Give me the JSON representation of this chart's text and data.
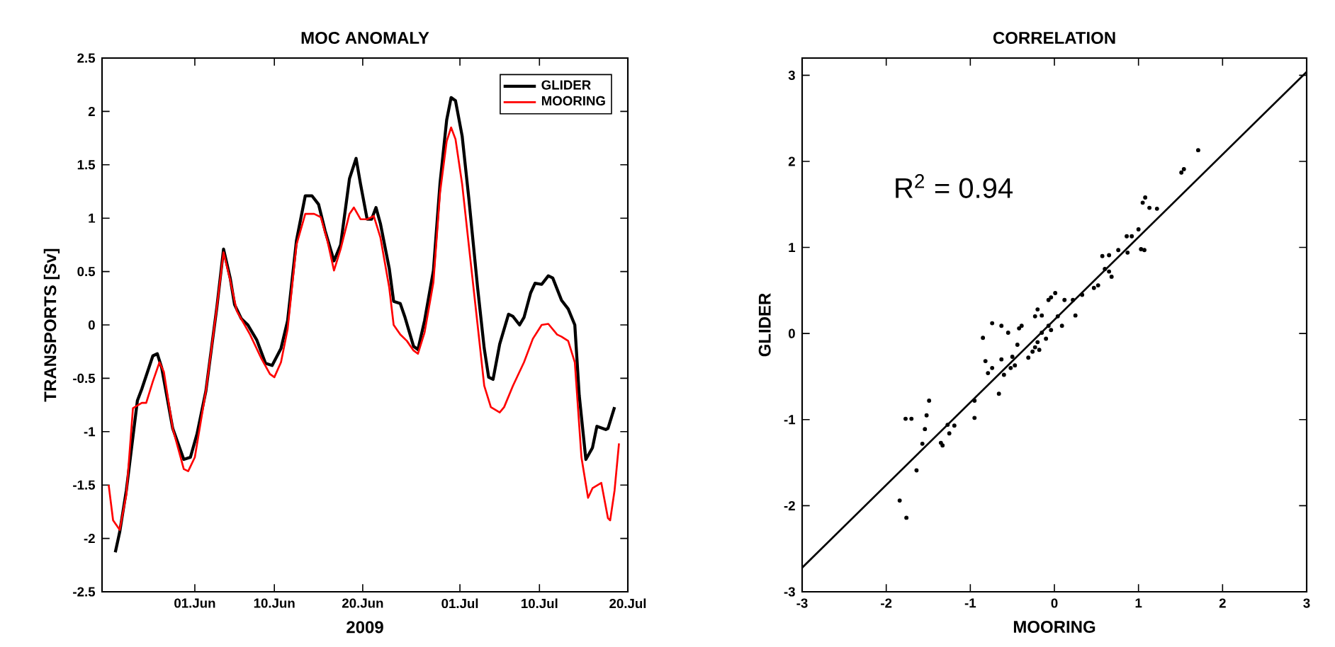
{
  "chart_data": [
    {
      "type": "line",
      "title": "MOC ANOMALY",
      "xlabel": "2009",
      "ylabel": "TRANSPORTS [Sv]",
      "xlim": [
        "2009-05-21T12:00",
        "2009-07-20T00:00"
      ],
      "ylim": [
        -2.5,
        2.5
      ],
      "xticks": [
        {
          "value": "2009-06-01",
          "label": "01.Jun"
        },
        {
          "value": "2009-06-10",
          "label": "10.Jun"
        },
        {
          "value": "2009-06-20",
          "label": "20.Jun"
        },
        {
          "value": "2009-07-01",
          "label": "01.Jul"
        },
        {
          "value": "2009-07-10",
          "label": "10.Jul"
        },
        {
          "value": "2009-07-20",
          "label": "20.Jul"
        }
      ],
      "yticks": [
        -2.5,
        -2,
        -1.5,
        -1,
        -0.5,
        0,
        0.5,
        1,
        1.5,
        2,
        2.5
      ],
      "legend": "top right",
      "line_style": "solid",
      "series": [
        {
          "name": "GLIDER",
          "color": "#000000",
          "x": [
            "2009-05-23T00:00",
            "2009-05-23T12:00",
            "2009-05-24T06:00",
            "2009-05-25T12:00",
            "2009-05-26T00:00",
            "2009-05-27T06:00",
            "2009-05-27T18:00",
            "2009-05-28T06:00",
            "2009-05-29T12:00",
            "2009-05-30T18:00",
            "2009-05-31T12:00",
            "2009-06-01T06:00",
            "2009-06-02T06:00",
            "2009-06-03T12:00",
            "2009-06-04T06:00",
            "2009-06-05T00:00",
            "2009-06-05T12:00",
            "2009-06-06T06:00",
            "2009-06-07T00:00",
            "2009-06-08T00:00",
            "2009-06-09T00:00",
            "2009-06-09T18:00",
            "2009-06-10T18:00",
            "2009-06-11T12:00",
            "2009-06-12T12:00",
            "2009-06-13T12:00",
            "2009-06-14T06:00",
            "2009-06-15T00:00",
            "2009-06-15T18:00",
            "2009-06-16T18:00",
            "2009-06-17T12:00",
            "2009-06-18T12:00",
            "2009-06-19T06:00",
            "2009-06-19T18:00",
            "2009-06-20T12:00",
            "2009-06-21T00:00",
            "2009-06-21T12:00",
            "2009-06-22T00:00",
            "2009-06-23T00:00",
            "2009-06-23T12:00",
            "2009-06-24T06:00",
            "2009-06-24T18:00",
            "2009-06-25T18:00",
            "2009-06-26T06:00",
            "2009-06-27T00:00",
            "2009-06-28T00:00",
            "2009-06-28T18:00",
            "2009-06-29T12:00",
            "2009-06-30T00:00",
            "2009-06-30T12:00",
            "2009-07-01T06:00",
            "2009-07-02T00:00",
            "2009-07-03T00:00",
            "2009-07-03T18:00",
            "2009-07-04T06:00",
            "2009-07-04T18:00",
            "2009-07-05T12:00",
            "2009-07-06T12:00",
            "2009-07-07T00:00",
            "2009-07-07T18:00",
            "2009-07-08T06:00",
            "2009-07-09T00:00",
            "2009-07-09T12:00",
            "2009-07-10T06:00",
            "2009-07-11T00:00",
            "2009-07-11T12:00",
            "2009-07-12T12:00",
            "2009-07-13T06:00",
            "2009-07-14T00:00",
            "2009-07-14T12:00",
            "2009-07-15T06:00",
            "2009-07-16T00:00",
            "2009-07-16T12:00",
            "2009-07-17T12:00",
            "2009-07-17T18:00",
            "2009-07-18T12:00"
          ],
          "values": [
            -2.13,
            -1.94,
            -1.55,
            -0.71,
            -0.6,
            -0.29,
            -0.27,
            -0.4,
            -0.97,
            -1.26,
            -1.24,
            -1.02,
            -0.62,
            0.17,
            0.71,
            0.44,
            0.19,
            0.06,
            0.0,
            -0.14,
            -0.36,
            -0.38,
            -0.22,
            0.04,
            0.79,
            1.21,
            1.21,
            1.13,
            0.88,
            0.6,
            0.75,
            1.37,
            1.56,
            1.32,
            0.99,
            0.99,
            1.1,
            0.95,
            0.53,
            0.22,
            0.2,
            0.08,
            -0.2,
            -0.23,
            0.04,
            0.51,
            1.33,
            1.92,
            2.13,
            2.1,
            1.77,
            1.19,
            0.35,
            -0.22,
            -0.49,
            -0.51,
            -0.18,
            0.1,
            0.08,
            0.0,
            0.07,
            0.3,
            0.39,
            0.38,
            0.46,
            0.44,
            0.23,
            0.15,
            0.0,
            -0.66,
            -1.26,
            -1.15,
            -0.95,
            -0.98,
            -0.97,
            -0.77
          ]
        },
        {
          "name": "MOORING",
          "color": "#ff0000",
          "x": [
            "2009-05-22T06:00",
            "2009-05-22T18:00",
            "2009-05-23T12:00",
            "2009-05-24T06:00",
            "2009-05-25T00:00",
            "2009-05-26T00:00",
            "2009-05-26T12:00",
            "2009-05-27T06:00",
            "2009-05-28T00:00",
            "2009-05-28T12:00",
            "2009-05-29T12:00",
            "2009-05-30T18:00",
            "2009-05-31T06:00",
            "2009-06-01T00:00",
            "2009-06-02T06:00",
            "2009-06-03T12:00",
            "2009-06-04T06:00",
            "2009-06-05T00:00",
            "2009-06-05T18:00",
            "2009-06-06T12:00",
            "2009-06-07T06:00",
            "2009-06-08T12:00",
            "2009-06-09T12:00",
            "2009-06-10T00:00",
            "2009-06-10T18:00",
            "2009-06-11T12:00",
            "2009-06-12T12:00",
            "2009-06-13T12:00",
            "2009-06-14T12:00",
            "2009-06-15T06:00",
            "2009-06-16T00:00",
            "2009-06-16T18:00",
            "2009-06-17T12:00",
            "2009-06-18T12:00",
            "2009-06-19T00:00",
            "2009-06-19T18:00",
            "2009-06-20T12:00",
            "2009-06-21T06:00",
            "2009-06-22T00:00",
            "2009-06-23T00:00",
            "2009-06-23T12:00",
            "2009-06-24T06:00",
            "2009-06-25T00:00",
            "2009-06-25T18:00",
            "2009-06-26T06:00",
            "2009-06-27T00:00",
            "2009-06-28T00:00",
            "2009-06-28T18:00",
            "2009-06-29T12:00",
            "2009-06-30T00:00",
            "2009-06-30T12:00",
            "2009-07-01T06:00",
            "2009-07-02T00:00",
            "2009-07-03T00:00",
            "2009-07-03T18:00",
            "2009-07-04T12:00",
            "2009-07-05T12:00",
            "2009-07-06T00:00",
            "2009-07-07T00:00",
            "2009-07-08T06:00",
            "2009-07-09T06:00",
            "2009-07-10T06:00",
            "2009-07-11T00:00",
            "2009-07-12T00:00",
            "2009-07-12T12:00",
            "2009-07-13T06:00",
            "2009-07-14T00:00",
            "2009-07-14T18:00",
            "2009-07-15T12:00",
            "2009-07-16T00:00",
            "2009-07-17T00:00",
            "2009-07-17T18:00",
            "2009-07-18T00:00",
            "2009-07-18T12:00",
            "2009-07-19T00:00"
          ],
          "values": [
            -1.5,
            -1.83,
            -1.92,
            -1.59,
            -0.78,
            -0.73,
            -0.73,
            -0.53,
            -0.35,
            -0.44,
            -0.97,
            -1.35,
            -1.37,
            -1.24,
            -0.62,
            0.17,
            0.68,
            0.42,
            0.13,
            0.02,
            -0.09,
            -0.31,
            -0.46,
            -0.49,
            -0.35,
            -0.04,
            0.75,
            1.04,
            1.04,
            1.01,
            0.79,
            0.51,
            0.71,
            1.04,
            1.1,
            0.99,
            0.99,
            1.02,
            0.82,
            0.35,
            0.0,
            -0.09,
            -0.15,
            -0.24,
            -0.27,
            -0.07,
            0.4,
            1.24,
            1.72,
            1.85,
            1.74,
            1.32,
            0.75,
            0.0,
            -0.57,
            -0.77,
            -0.82,
            -0.77,
            -0.57,
            -0.35,
            -0.13,
            0.0,
            0.01,
            -0.09,
            -0.11,
            -0.15,
            -0.35,
            -1.24,
            -1.62,
            -1.53,
            -1.48,
            -1.81,
            -1.83,
            -1.55,
            -1.11
          ]
        }
      ]
    },
    {
      "type": "scatter",
      "title": "CORRELATION",
      "xlabel": "MOORING",
      "ylabel": "GLIDER",
      "xlim": [
        -3,
        3
      ],
      "ylim": [
        -3,
        3.2
      ],
      "xticks": [
        -3,
        -2,
        -1,
        0,
        1,
        2,
        3
      ],
      "yticks": [
        -3,
        -2,
        -1,
        0,
        1,
        2,
        3
      ],
      "annotations": [
        "R$^{2}$ = 0.94"
      ],
      "series": [
        {
          "type": "scatter",
          "marker": "circle",
          "color": "#000000",
          "x": [
            1.71,
            1.54,
            1.51,
            1.08,
            1.05,
            1.13,
            1.22,
            1.0,
            0.92,
            0.86,
            1.03,
            1.07,
            0.87,
            0.76,
            0.57,
            0.65,
            0.6,
            0.65,
            0.68,
            0.52,
            0.47,
            0.33,
            0.22,
            0.12,
            0.01,
            -0.07,
            -0.04,
            -0.2,
            -0.15,
            -0.23,
            -0.07,
            -0.15,
            0.04,
            0.09,
            -0.04,
            0.25,
            -0.1,
            -0.2,
            -0.23,
            -0.26,
            -0.18,
            -0.31,
            -0.39,
            -0.42,
            -0.55,
            -0.63,
            -0.74,
            -0.85,
            -0.44,
            -0.5,
            -0.47,
            -0.52,
            -0.63,
            -0.6,
            -0.74,
            -0.79,
            -0.82,
            -0.66,
            -0.95,
            -0.95,
            -1.49,
            -1.52,
            -1.54,
            -1.7,
            -1.77,
            -1.57,
            -1.35,
            -1.33,
            -1.27,
            -1.25,
            -1.19,
            -1.64,
            -1.84,
            -1.76
          ],
          "values": [
            2.13,
            1.91,
            1.87,
            1.58,
            1.52,
            1.46,
            1.45,
            1.21,
            1.13,
            1.13,
            0.98,
            0.97,
            0.94,
            0.97,
            0.9,
            0.91,
            0.75,
            0.72,
            0.66,
            0.56,
            0.53,
            0.45,
            0.39,
            0.39,
            0.47,
            0.39,
            0.42,
            0.28,
            0.21,
            0.2,
            0.09,
            0.01,
            0.2,
            0.09,
            0.04,
            0.21,
            -0.06,
            -0.1,
            -0.16,
            -0.21,
            -0.19,
            -0.28,
            0.09,
            0.06,
            0.01,
            0.09,
            0.12,
            -0.05,
            -0.13,
            -0.27,
            -0.37,
            -0.4,
            -0.3,
            -0.48,
            -0.4,
            -0.46,
            -0.32,
            -0.7,
            -0.78,
            -0.98,
            -0.78,
            -0.95,
            -1.11,
            -0.99,
            -0.99,
            -1.28,
            -1.27,
            -1.3,
            -1.06,
            -1.16,
            -1.07,
            -1.59,
            -1.94,
            -2.14
          ]
        },
        {
          "type": "line",
          "marker": "none",
          "color": "#000000",
          "x": [
            -3,
            3
          ],
          "values": [
            -2.72,
            3.04
          ]
        }
      ]
    }
  ]
}
